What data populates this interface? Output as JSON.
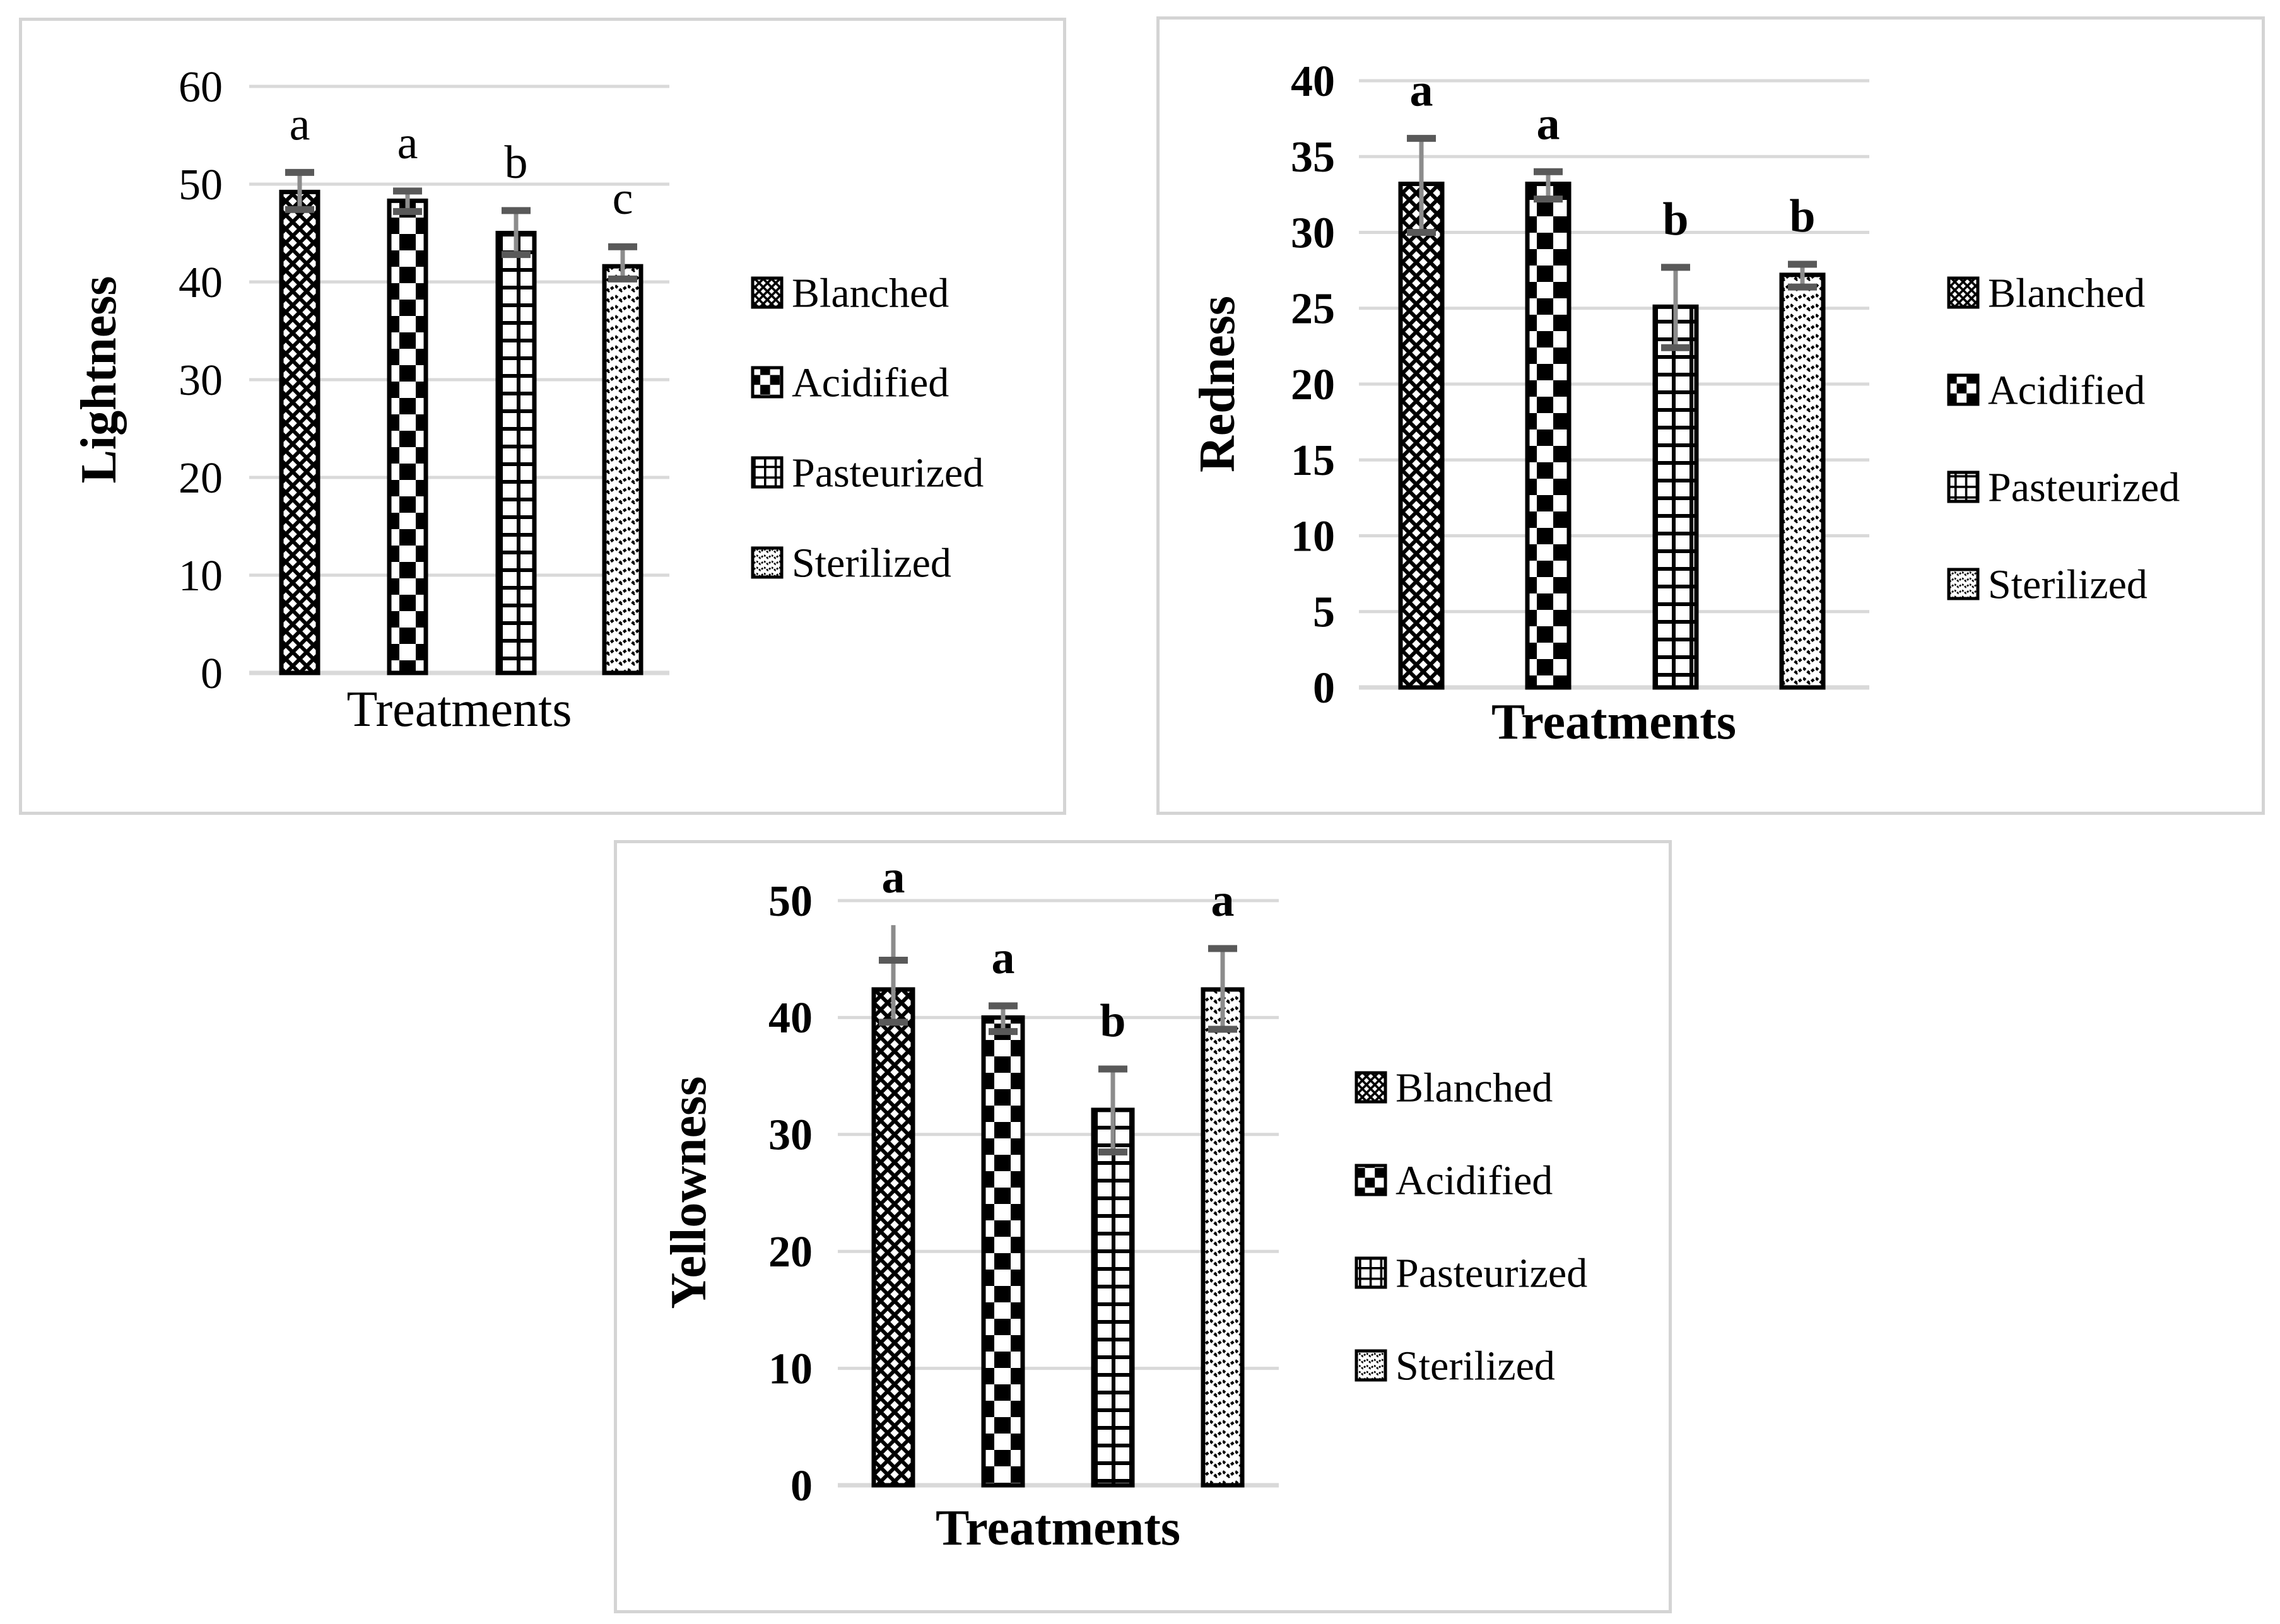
{
  "figure": {
    "background": "#ffffff",
    "panel_count": 3
  },
  "series": [
    {
      "name": "Blanched",
      "pattern": "diamond-crosshatch-swatch"
    },
    {
      "name": "Acidified",
      "pattern": "checkerboard-swatch"
    },
    {
      "name": "Pasteurized",
      "pattern": "window-grid-swatch"
    },
    {
      "name": "Sterilized",
      "pattern": "dotted-zigzag-swatch"
    }
  ],
  "colors": {
    "bar_outline": "#000000",
    "pattern_ink": "#000000",
    "error_bar_cap": "#595959",
    "error_bar_line": "#8c8c8c",
    "gridline": "#d9d9d9",
    "panel_border": "#d4d4d4",
    "text": "#000000"
  },
  "chart_data": [
    {
      "type": "bar",
      "title": "",
      "ylabel": "Lightness",
      "xlabel": "Treatments",
      "ylim": [
        0,
        60
      ],
      "ytick_step": 10,
      "yticks": [
        0,
        10,
        20,
        30,
        40,
        50,
        60
      ],
      "grid": true,
      "legend_position": "right",
      "categories": [
        "Blanched",
        "Acidified",
        "Pasteurized",
        "Sterilized"
      ],
      "values": [
        49.2,
        48.3,
        45.0,
        41.6
      ],
      "error_low": [
        47.4,
        47.2,
        42.8,
        40.3
      ],
      "error_high": [
        51.2,
        49.3,
        47.3,
        43.6
      ],
      "error_whisker_top": [
        null,
        null,
        null,
        null
      ],
      "sig_letters": [
        "a",
        "a",
        "b",
        "c"
      ]
    },
    {
      "type": "bar",
      "title": "",
      "ylabel": "Redness",
      "xlabel": "Treatments",
      "ylim": [
        0,
        40
      ],
      "ytick_step": 5,
      "yticks": [
        0,
        5,
        10,
        15,
        20,
        25,
        30,
        35,
        40
      ],
      "grid": true,
      "legend_position": "right",
      "categories": [
        "Blanched",
        "Acidified",
        "Pasteurized",
        "Sterilized"
      ],
      "values": [
        33.2,
        33.2,
        25.1,
        27.2
      ],
      "error_low": [
        30.0,
        32.2,
        22.4,
        26.4
      ],
      "error_high": [
        36.2,
        34.0,
        27.7,
        27.9
      ],
      "error_whisker_top": [
        null,
        null,
        null,
        null
      ],
      "sig_letters": [
        "a",
        "a",
        "b",
        "b"
      ]
    },
    {
      "type": "bar",
      "title": "",
      "ylabel": "Yellowness",
      "xlabel": "Treatments",
      "ylim": [
        0,
        50
      ],
      "ytick_step": 10,
      "yticks": [
        0,
        10,
        20,
        30,
        40,
        50
      ],
      "grid": true,
      "legend_position": "right",
      "categories": [
        "Blanched",
        "Acidified",
        "Pasteurized",
        "Sterilized"
      ],
      "values": [
        42.4,
        40.0,
        32.1,
        42.4
      ],
      "error_low": [
        39.6,
        38.8,
        28.5,
        39.0
      ],
      "error_high": [
        44.9,
        41.0,
        35.6,
        45.9
      ],
      "error_whisker_top": [
        47.9,
        null,
        null,
        null
      ],
      "sig_letters": [
        "a",
        "a",
        "b",
        "a"
      ]
    }
  ]
}
